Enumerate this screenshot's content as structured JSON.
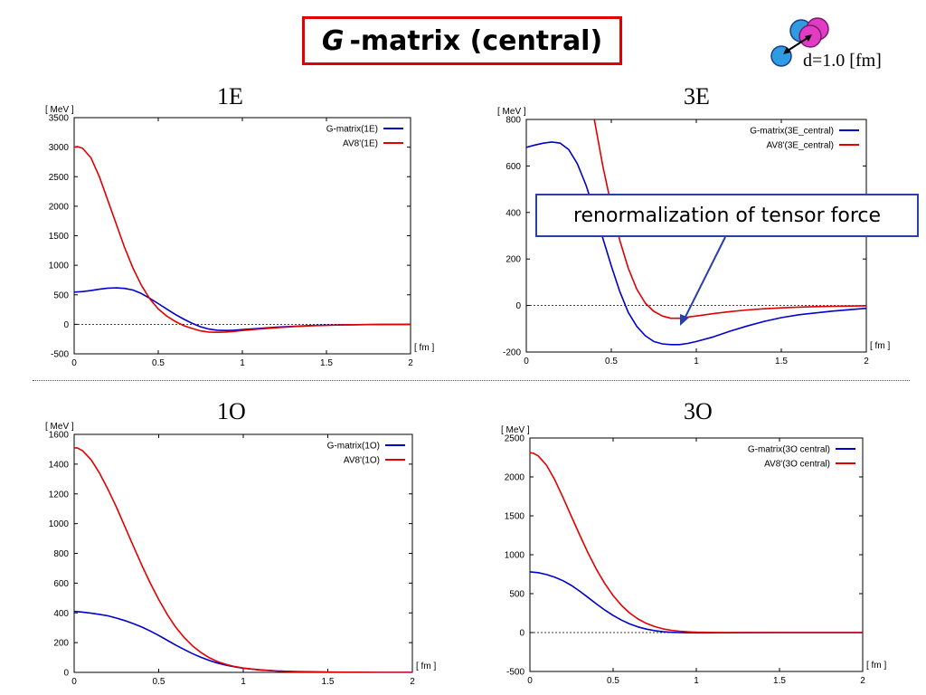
{
  "slide": {
    "title_italic": "G",
    "title_rest": "-matrix (central)",
    "molecule_label": "d=1.0 [fm]",
    "callout": "renormalization of tensor force"
  },
  "colors": {
    "gmatrix": "#0000cc",
    "av8": "#e00000",
    "callout_border": "#2b3fa8",
    "title_border": "#e00000"
  },
  "chart_data": [
    {
      "type": "line",
      "title": "1E",
      "ylabel": "[ MeV ]",
      "xlabel": "[ fm ]",
      "xlim": [
        0,
        2
      ],
      "ylim": [
        -500,
        3500
      ],
      "xticks": [
        0,
        0.5,
        1,
        1.5,
        2
      ],
      "yticks": [
        -500,
        0,
        500,
        1000,
        1500,
        2000,
        2500,
        3000,
        3500
      ],
      "legend_position": "top-right",
      "series": [
        {
          "name": "G-matrix(1E)",
          "color": "#0000cc",
          "x": [
            0,
            0.05,
            0.1,
            0.15,
            0.2,
            0.25,
            0.3,
            0.35,
            0.4,
            0.45,
            0.5,
            0.55,
            0.6,
            0.65,
            0.7,
            0.75,
            0.8,
            0.85,
            0.9,
            0.95,
            1.0,
            1.1,
            1.2,
            1.3,
            1.4,
            1.5,
            1.6,
            1.8,
            2.0
          ],
          "y": [
            545,
            555,
            572,
            595,
            612,
            618,
            608,
            580,
            520,
            440,
            350,
            260,
            170,
            90,
            20,
            -40,
            -80,
            -100,
            -105,
            -100,
            -90,
            -70,
            -50,
            -35,
            -22,
            -14,
            -8,
            -3,
            0
          ]
        },
        {
          "name": "AV8'(1E)",
          "color": "#e00000",
          "x": [
            0,
            0.02,
            0.05,
            0.1,
            0.15,
            0.2,
            0.25,
            0.3,
            0.35,
            0.4,
            0.45,
            0.5,
            0.55,
            0.6,
            0.65,
            0.7,
            0.75,
            0.8,
            0.85,
            0.9,
            0.95,
            1.0,
            1.1,
            1.2,
            1.3,
            1.4,
            1.5,
            1.6,
            1.8,
            2.0
          ],
          "y": [
            3000,
            3010,
            2980,
            2820,
            2500,
            2100,
            1700,
            1300,
            950,
            660,
            430,
            260,
            140,
            50,
            -20,
            -70,
            -110,
            -130,
            -135,
            -130,
            -120,
            -105,
            -80,
            -58,
            -40,
            -27,
            -18,
            -11,
            -4,
            0
          ]
        }
      ]
    },
    {
      "type": "line",
      "title": "3E",
      "ylabel": "[ MeV ]",
      "xlabel": "[ fm ]",
      "xlim": [
        0,
        2
      ],
      "ylim": [
        -200,
        800
      ],
      "xticks": [
        0,
        0.5,
        1,
        1.5,
        2
      ],
      "yticks": [
        -200,
        0,
        200,
        400,
        600,
        800
      ],
      "legend_position": "top-right",
      "series": [
        {
          "name": "G-matrix(3E_central)",
          "color": "#0000cc",
          "x": [
            0,
            0.05,
            0.1,
            0.15,
            0.2,
            0.25,
            0.3,
            0.35,
            0.4,
            0.45,
            0.5,
            0.55,
            0.6,
            0.65,
            0.7,
            0.75,
            0.8,
            0.85,
            0.9,
            0.95,
            1.0,
            1.1,
            1.2,
            1.3,
            1.4,
            1.5,
            1.6,
            1.8,
            2.0
          ],
          "y": [
            680,
            690,
            698,
            703,
            698,
            670,
            610,
            520,
            410,
            290,
            170,
            60,
            -30,
            -90,
            -130,
            -155,
            -165,
            -168,
            -168,
            -163,
            -155,
            -135,
            -110,
            -88,
            -68,
            -52,
            -40,
            -24,
            -12
          ]
        },
        {
          "name": "AV8'(3E_central)",
          "color": "#e00000",
          "x": [
            0.4,
            0.45,
            0.5,
            0.55,
            0.6,
            0.65,
            0.7,
            0.75,
            0.8,
            0.85,
            0.9,
            0.95,
            1.0,
            1.1,
            1.2,
            1.3,
            1.4,
            1.5,
            1.6,
            1.8,
            2.0
          ],
          "y": [
            800,
            600,
            430,
            280,
            160,
            70,
            10,
            -25,
            -45,
            -55,
            -55,
            -50,
            -45,
            -35,
            -26,
            -19,
            -14,
            -10,
            -7,
            -3,
            -1
          ]
        }
      ]
    },
    {
      "type": "line",
      "title": "1O",
      "ylabel": "[ MeV ]",
      "xlabel": "[ fm ]",
      "xlim": [
        0,
        2
      ],
      "ylim": [
        0,
        1600
      ],
      "xticks": [
        0,
        0.5,
        1,
        1.5,
        2
      ],
      "yticks": [
        0,
        200,
        400,
        600,
        800,
        1000,
        1200,
        1400,
        1600
      ],
      "legend_position": "top-right",
      "series": [
        {
          "name": "G-matrix(1O)",
          "color": "#0000cc",
          "x": [
            0,
            0.05,
            0.1,
            0.15,
            0.2,
            0.25,
            0.3,
            0.35,
            0.4,
            0.45,
            0.5,
            0.55,
            0.6,
            0.65,
            0.7,
            0.75,
            0.8,
            0.85,
            0.9,
            0.95,
            1.0,
            1.1,
            1.2,
            1.3,
            1.4,
            1.5,
            1.6,
            1.8,
            2.0
          ],
          "y": [
            410,
            405,
            398,
            390,
            380,
            365,
            348,
            328,
            305,
            278,
            248,
            216,
            184,
            154,
            126,
            101,
            80,
            62,
            48,
            37,
            28,
            17,
            10,
            6,
            4,
            2,
            1,
            0,
            0
          ]
        },
        {
          "name": "AV8'(1O)",
          "color": "#e00000",
          "x": [
            0,
            0.02,
            0.05,
            0.1,
            0.15,
            0.2,
            0.25,
            0.3,
            0.35,
            0.4,
            0.45,
            0.5,
            0.55,
            0.6,
            0.65,
            0.7,
            0.75,
            0.8,
            0.85,
            0.9,
            0.95,
            1.0,
            1.1,
            1.2,
            1.3,
            1.4,
            1.5,
            1.6,
            1.8,
            2.0
          ],
          "y": [
            1510,
            1508,
            1490,
            1430,
            1340,
            1230,
            1110,
            980,
            850,
            720,
            600,
            490,
            390,
            305,
            235,
            178,
            133,
            98,
            72,
            53,
            39,
            29,
            16,
            9,
            5,
            3,
            2,
            1,
            0,
            0
          ]
        }
      ]
    },
    {
      "type": "line",
      "title": "3O",
      "ylabel": "[ MeV ]",
      "xlabel": "[ fm ]",
      "xlim": [
        0,
        2
      ],
      "ylim": [
        -500,
        2500
      ],
      "xticks": [
        0,
        0.5,
        1,
        1.5,
        2
      ],
      "yticks": [
        -500,
        0,
        500,
        1000,
        1500,
        2000,
        2500
      ],
      "legend_position": "top-right",
      "series": [
        {
          "name": "G-matrix(3O central)",
          "color": "#0000cc",
          "x": [
            0,
            0.05,
            0.1,
            0.15,
            0.2,
            0.25,
            0.3,
            0.35,
            0.4,
            0.45,
            0.5,
            0.55,
            0.6,
            0.65,
            0.7,
            0.75,
            0.8,
            0.85,
            0.9,
            0.95,
            1.0,
            1.1,
            1.2,
            1.3,
            1.5,
            2.0
          ],
          "y": [
            780,
            770,
            745,
            710,
            665,
            605,
            530,
            450,
            368,
            290,
            220,
            160,
            110,
            72,
            44,
            24,
            11,
            4,
            0,
            -2,
            -3,
            -3,
            -2,
            -1,
            0,
            0
          ]
        },
        {
          "name": "AV8'(3O central)",
          "color": "#e00000",
          "x": [
            0,
            0.02,
            0.05,
            0.1,
            0.15,
            0.2,
            0.25,
            0.3,
            0.35,
            0.4,
            0.45,
            0.5,
            0.55,
            0.6,
            0.65,
            0.7,
            0.75,
            0.8,
            0.85,
            0.9,
            0.95,
            1.0,
            1.1,
            1.2,
            1.3,
            1.5,
            2.0
          ],
          "y": [
            2310,
            2305,
            2270,
            2150,
            1960,
            1730,
            1490,
            1250,
            1020,
            810,
            630,
            475,
            350,
            250,
            175,
            118,
            77,
            48,
            29,
            17,
            9,
            5,
            1,
            0,
            0,
            0,
            0
          ]
        }
      ]
    }
  ]
}
